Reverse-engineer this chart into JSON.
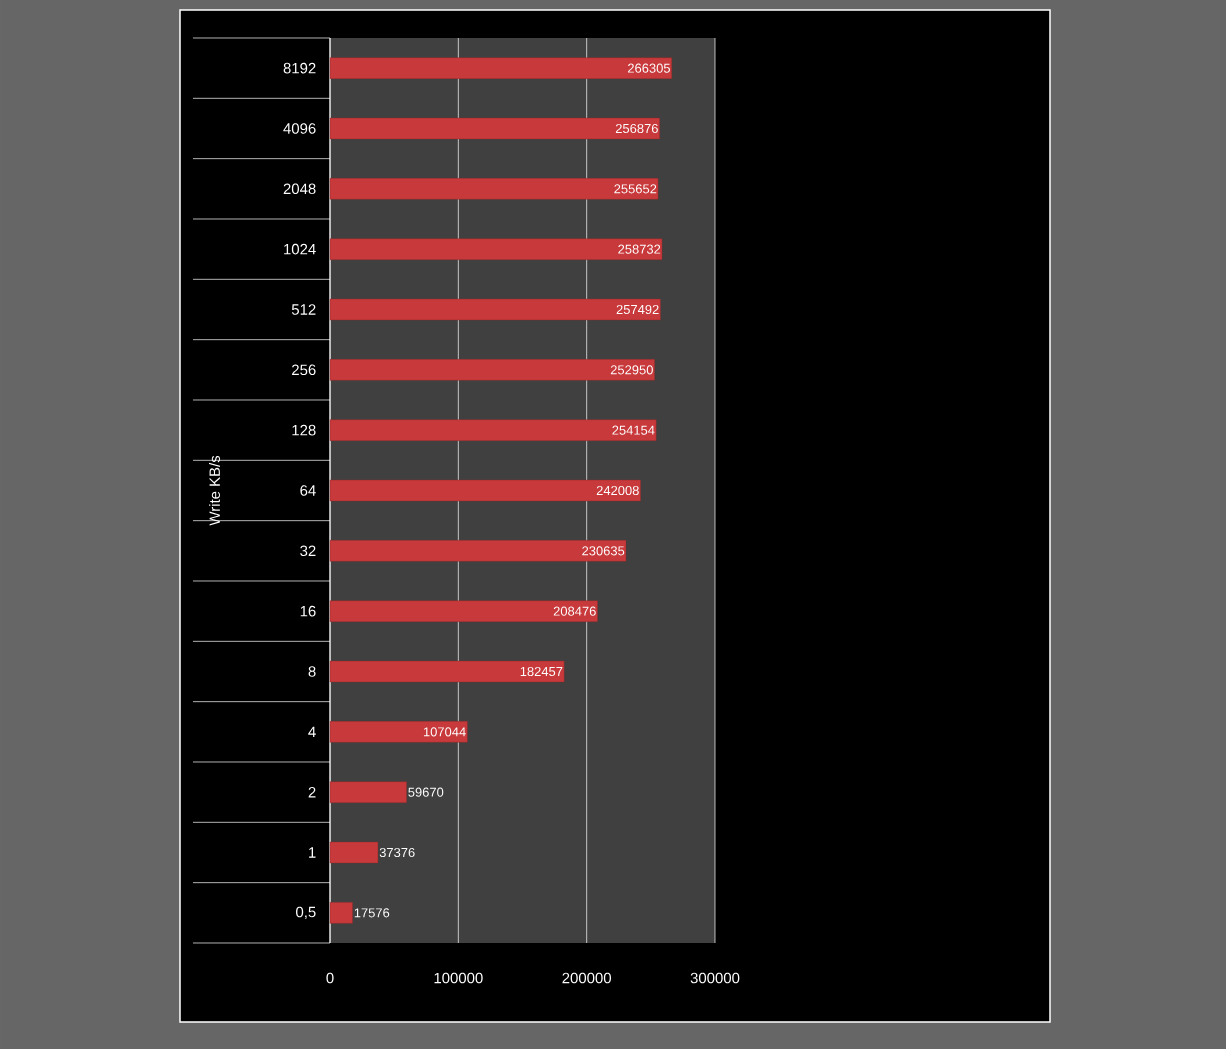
{
  "chart_data": {
    "type": "bar",
    "orientation": "horizontal",
    "ylabel": "Write KB/s",
    "categories": [
      "8192",
      "4096",
      "2048",
      "1024",
      "512",
      "256",
      "128",
      "64",
      "32",
      "16",
      "8",
      "4",
      "2",
      "1",
      "0,5"
    ],
    "values": [
      266305,
      256876,
      255652,
      258732,
      257492,
      252950,
      254154,
      242008,
      230635,
      208476,
      182457,
      107044,
      59670,
      37376,
      17576
    ],
    "color": "#c8393b",
    "data_labels": true,
    "grid": "x",
    "xlim": [
      0,
      300000
    ],
    "xticks": [
      0,
      100000,
      200000,
      300000
    ]
  }
}
